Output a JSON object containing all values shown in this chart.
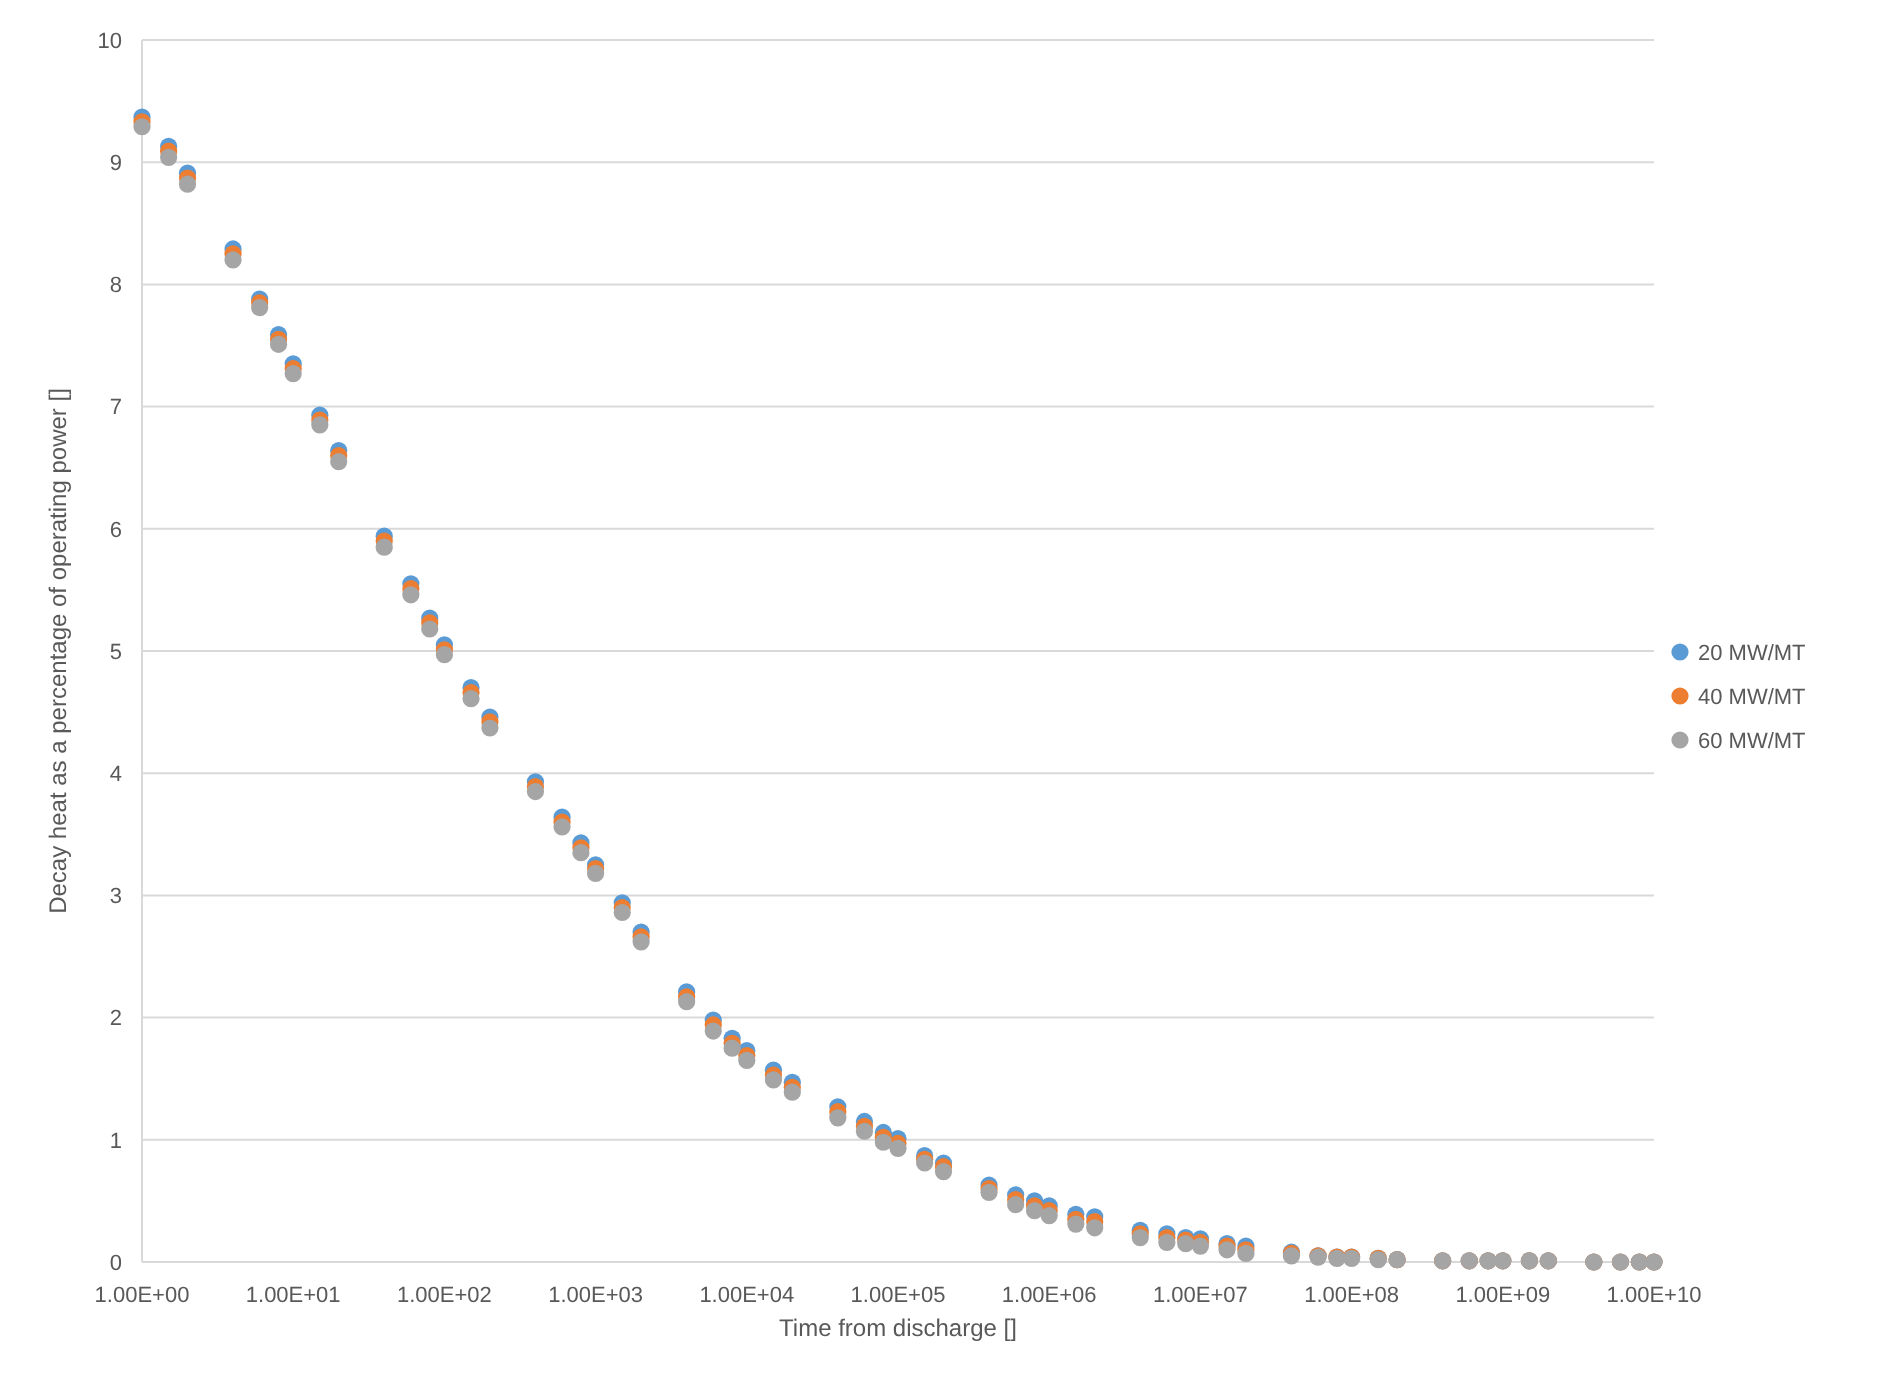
{
  "chart_data": {
    "type": "scatter",
    "xlabel": "Time from discharge []",
    "ylabel": "Decay heat as a percentage of operating power []",
    "log": "x",
    "grid": "y",
    "legend": "right",
    "marker": "circle",
    "x": [
      1,
      1.5,
      2,
      4,
      6,
      8,
      10,
      15,
      20,
      40,
      60,
      80,
      100,
      150,
      200,
      400,
      600,
      800,
      1000,
      1500,
      2000,
      4000,
      6000,
      8000,
      10000,
      15000,
      20000,
      40000,
      60000,
      80000,
      100000,
      150000,
      200000,
      400000,
      600000,
      800000,
      1000000,
      1500000,
      2000000,
      4000000,
      6000000,
      8000000,
      10000000,
      15000000,
      20000000,
      40000000,
      60000000,
      80000000,
      100000000,
      150000000,
      200000000,
      400000000,
      600000000,
      800000000,
      1000000000,
      1500000000,
      2000000000,
      4000000000,
      6000000000,
      8000000000,
      10000000000
    ],
    "xlim": [
      1,
      10000000000
    ],
    "xticks": [
      {
        "value": 1,
        "label": "1.00E+00"
      },
      {
        "value": 10,
        "label": "1.00E+01"
      },
      {
        "value": 100,
        "label": "1.00E+02"
      },
      {
        "value": 1000,
        "label": "1.00E+03"
      },
      {
        "value": 10000,
        "label": "1.00E+04"
      },
      {
        "value": 100000,
        "label": "1.00E+05"
      },
      {
        "value": 1000000,
        "label": "1.00E+06"
      },
      {
        "value": 10000000,
        "label": "1.00E+07"
      },
      {
        "value": 100000000,
        "label": "1.00E+08"
      },
      {
        "value": 1000000000,
        "label": "1.00E+09"
      },
      {
        "value": 10000000000,
        "label": "1.00E+10"
      }
    ],
    "ylim": [
      0,
      10
    ],
    "yticks": [
      0,
      1,
      2,
      3,
      4,
      5,
      6,
      7,
      8,
      9,
      10
    ],
    "series": [
      {
        "name": "20 MW/MT",
        "color": "#5b9bd5",
        "values": [
          9.37,
          9.13,
          8.91,
          8.29,
          7.88,
          7.59,
          7.35,
          6.93,
          6.64,
          5.94,
          5.55,
          5.27,
          5.05,
          4.7,
          4.46,
          3.93,
          3.64,
          3.43,
          3.25,
          2.94,
          2.7,
          2.21,
          1.98,
          1.83,
          1.73,
          1.57,
          1.47,
          1.27,
          1.15,
          1.06,
          1.01,
          0.87,
          0.81,
          0.63,
          0.55,
          0.5,
          0.46,
          0.39,
          0.37,
          0.26,
          0.23,
          0.2,
          0.19,
          0.15,
          0.13,
          0.08,
          0.05,
          0.04,
          0.04,
          0.03,
          0.02,
          0.01,
          0.01,
          0.01,
          0.01,
          0.01,
          0.01,
          0,
          0,
          0,
          0
        ]
      },
      {
        "name": "40 MW/MT",
        "color": "#ed7d31",
        "values": [
          9.33,
          9.09,
          8.87,
          8.25,
          7.85,
          7.55,
          7.31,
          6.89,
          6.6,
          5.9,
          5.51,
          5.23,
          5.01,
          4.66,
          4.42,
          3.89,
          3.6,
          3.39,
          3.22,
          2.9,
          2.66,
          2.17,
          1.94,
          1.79,
          1.69,
          1.53,
          1.43,
          1.23,
          1.11,
          1.02,
          0.97,
          0.84,
          0.78,
          0.6,
          0.51,
          0.46,
          0.42,
          0.35,
          0.33,
          0.23,
          0.2,
          0.18,
          0.16,
          0.13,
          0.1,
          0.07,
          0.05,
          0.04,
          0.04,
          0.03,
          0.02,
          0.01,
          0.01,
          0.01,
          0.01,
          0.01,
          0.01,
          0,
          0,
          0,
          0
        ]
      },
      {
        "name": "60 MW/MT",
        "color": "#a5a5a5",
        "values": [
          9.29,
          9.04,
          8.82,
          8.2,
          7.81,
          7.51,
          7.27,
          6.85,
          6.55,
          5.85,
          5.46,
          5.18,
          4.97,
          4.61,
          4.37,
          3.85,
          3.56,
          3.35,
          3.18,
          2.86,
          2.62,
          2.13,
          1.89,
          1.75,
          1.65,
          1.49,
          1.39,
          1.18,
          1.07,
          0.98,
          0.93,
          0.81,
          0.74,
          0.57,
          0.47,
          0.42,
          0.38,
          0.31,
          0.28,
          0.2,
          0.16,
          0.15,
          0.13,
          0.1,
          0.07,
          0.05,
          0.04,
          0.03,
          0.03,
          0.02,
          0.02,
          0.01,
          0.01,
          0.01,
          0.01,
          0.01,
          0.01,
          0,
          0,
          0,
          0
        ]
      }
    ]
  }
}
